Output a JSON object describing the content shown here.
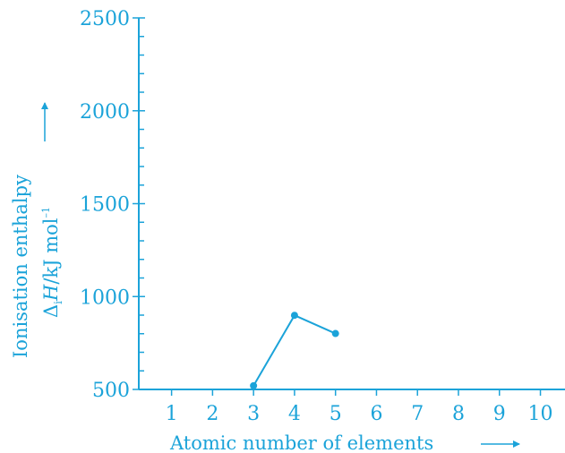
{
  "chart_data": {
    "type": "line",
    "xlabel": "Atomic number of elements",
    "ylabel_line1": "Ionisation enthalpy",
    "ylabel_line2_prefix": "Δ",
    "ylabel_line2_sub": "i",
    "ylabel_line2_var": "H",
    "ylabel_line2_units": "/kJ mol",
    "ylabel_line2_sup": "–1",
    "x_ticks": [
      1,
      2,
      3,
      4,
      5,
      6,
      7,
      8,
      9,
      10
    ],
    "y_ticks": [
      500,
      1000,
      1500,
      2000,
      2500
    ],
    "xlim": [
      0.2,
      10.6
    ],
    "ylim": [
      500,
      2500
    ],
    "series": [
      {
        "x": [
          3,
          4,
          5
        ],
        "y": [
          520,
          899,
          801
        ]
      }
    ],
    "grid": false,
    "color": "#1ba3d9"
  }
}
